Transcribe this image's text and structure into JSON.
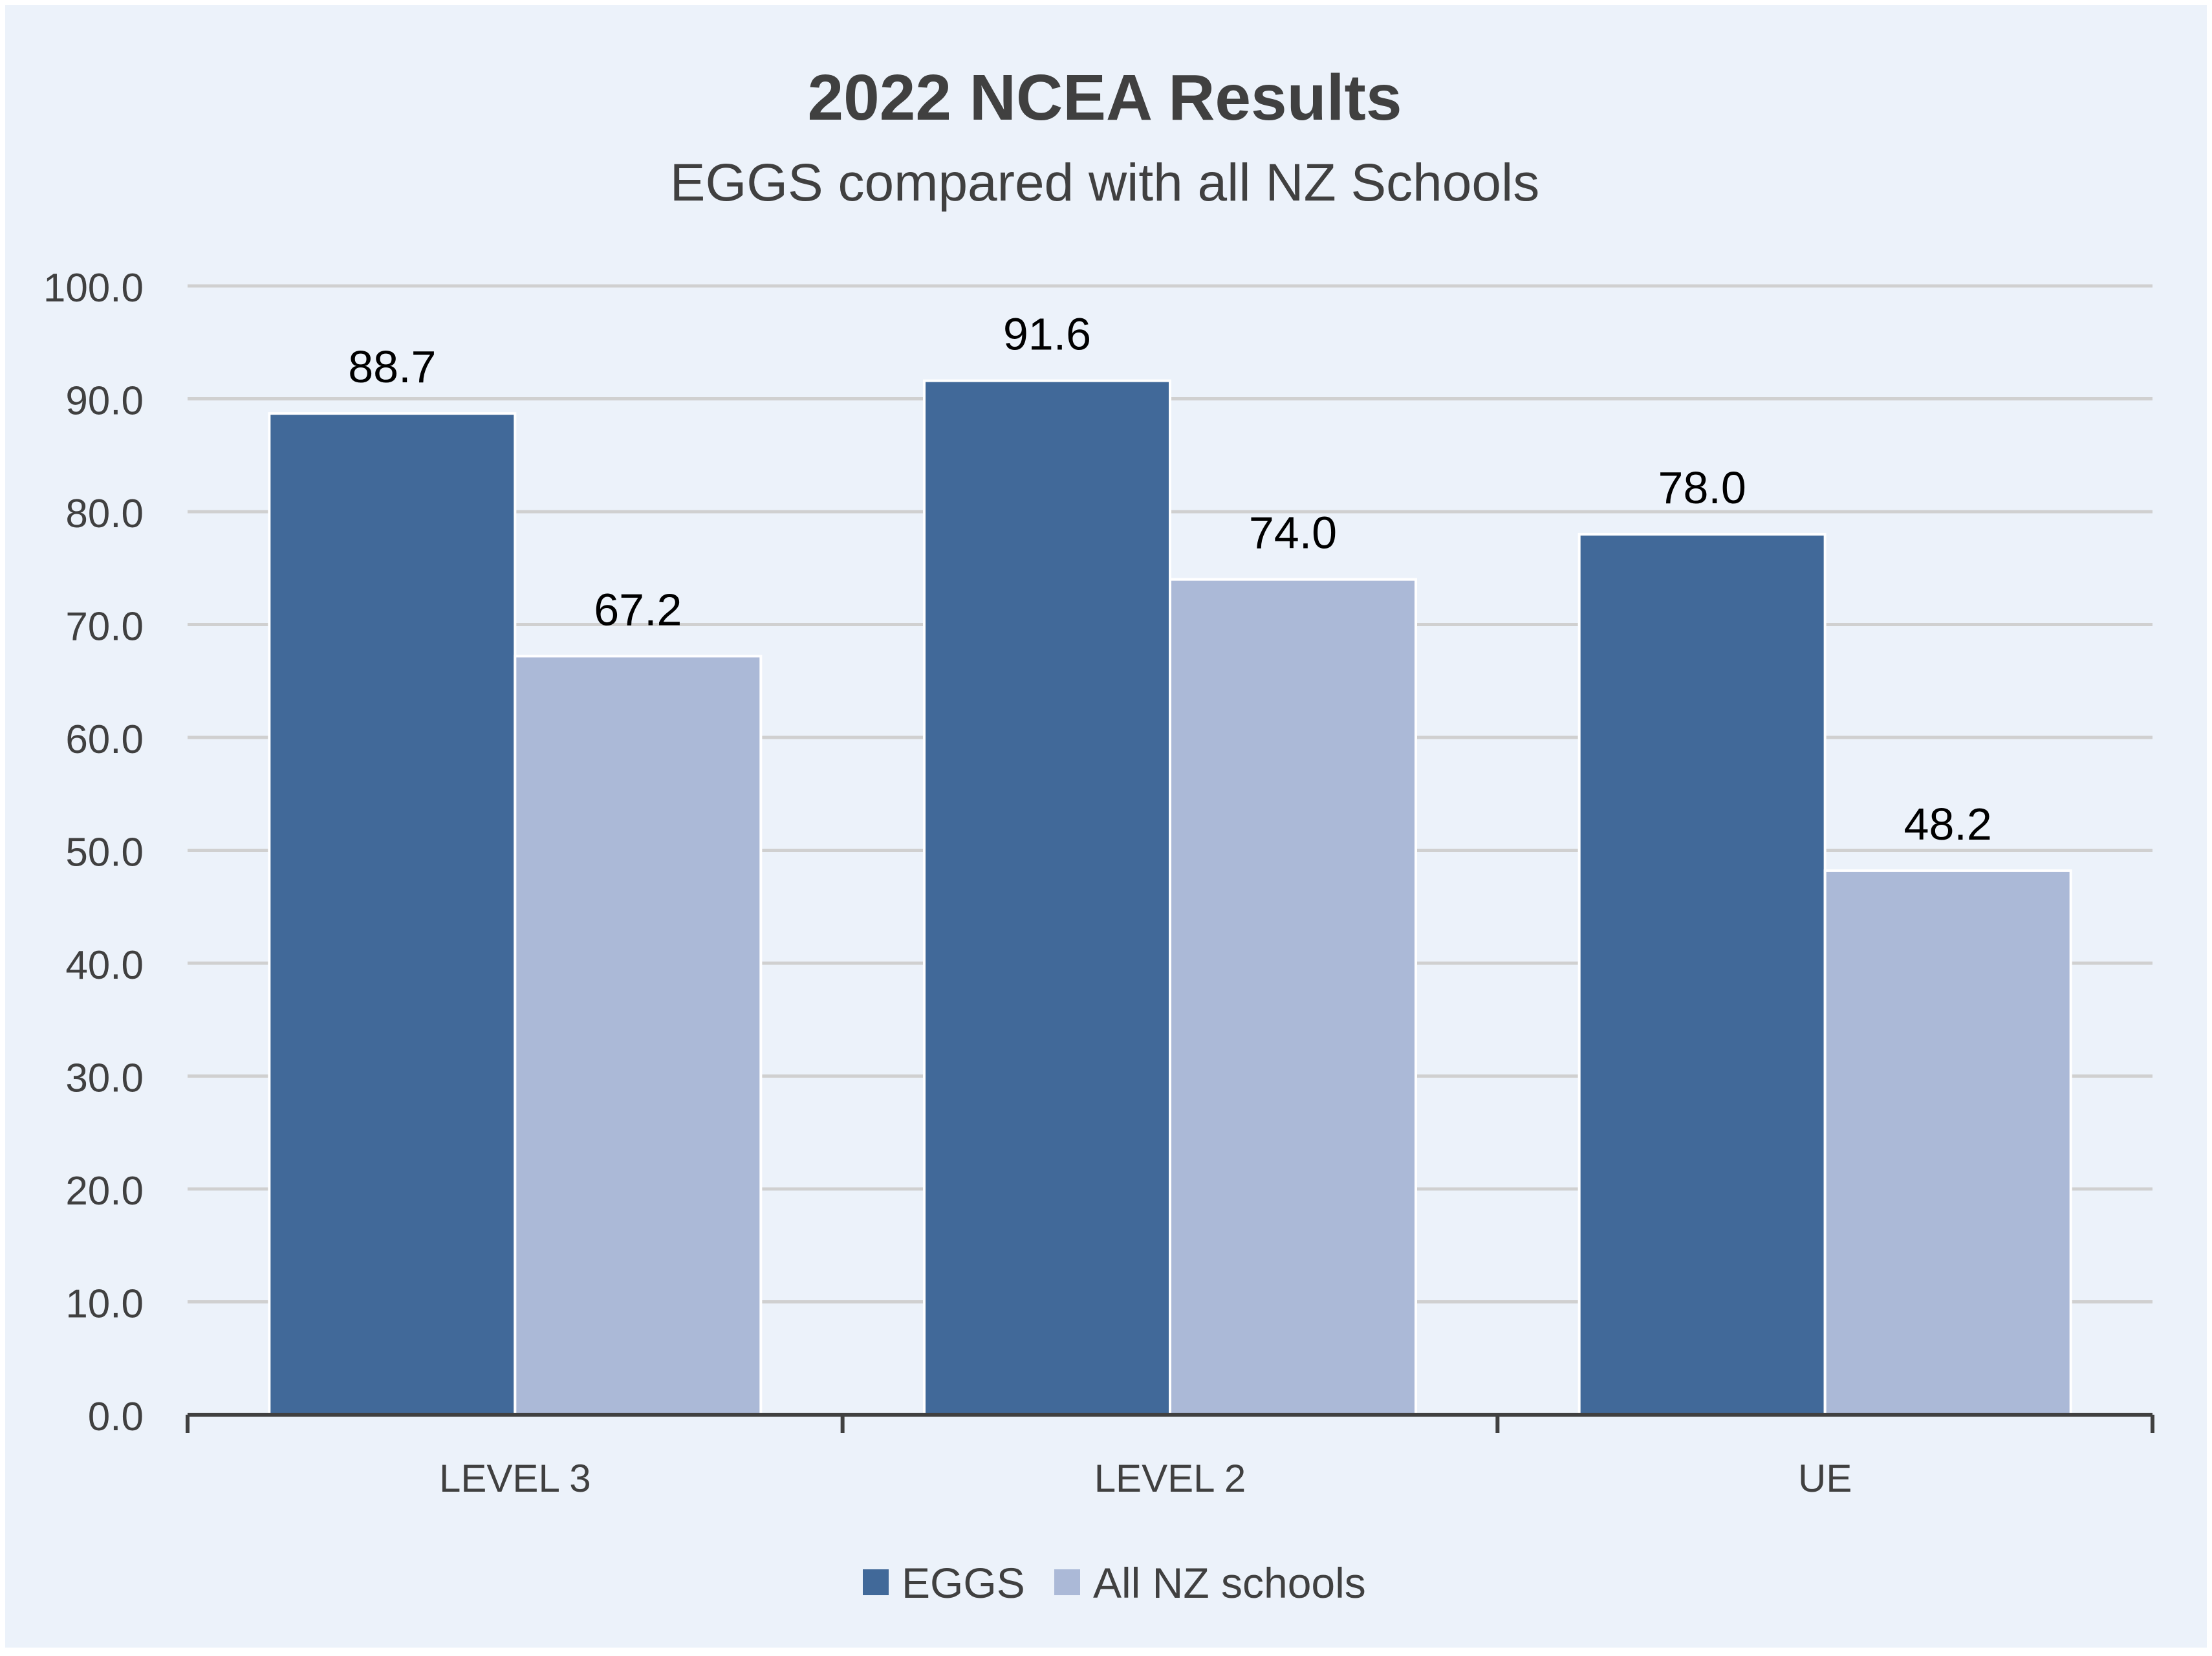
{
  "chart_data": {
    "type": "bar",
    "title": "2022 NCEA Results",
    "subtitle": "EGGS compared with all NZ Schools",
    "categories": [
      "LEVEL 3",
      "LEVEL 2",
      "UE"
    ],
    "series": [
      {
        "name": "EGGS",
        "values": [
          88.7,
          91.6,
          78.0
        ],
        "color": "#416999"
      },
      {
        "name": "All NZ schools",
        "values": [
          67.2,
          74.0,
          48.2
        ],
        "color": "#abb9d7"
      }
    ],
    "data_labels": [
      [
        "88.7",
        "91.6",
        "78.0"
      ],
      [
        "67.2",
        "74.0",
        "48.2"
      ]
    ],
    "ylim": [
      0,
      100
    ],
    "yticks": [
      "0.0",
      "10.0",
      "20.0",
      "30.0",
      "40.0",
      "50.0",
      "60.0",
      "70.0",
      "80.0",
      "90.0",
      "100.0"
    ],
    "xlabel": "",
    "ylabel": "",
    "grid": true,
    "legend_position": "bottom",
    "colors": {
      "background": "#ecf2fa",
      "outer_border": "#ffffff",
      "gridline": "#d0d0d0",
      "axis": "#404040"
    }
  }
}
